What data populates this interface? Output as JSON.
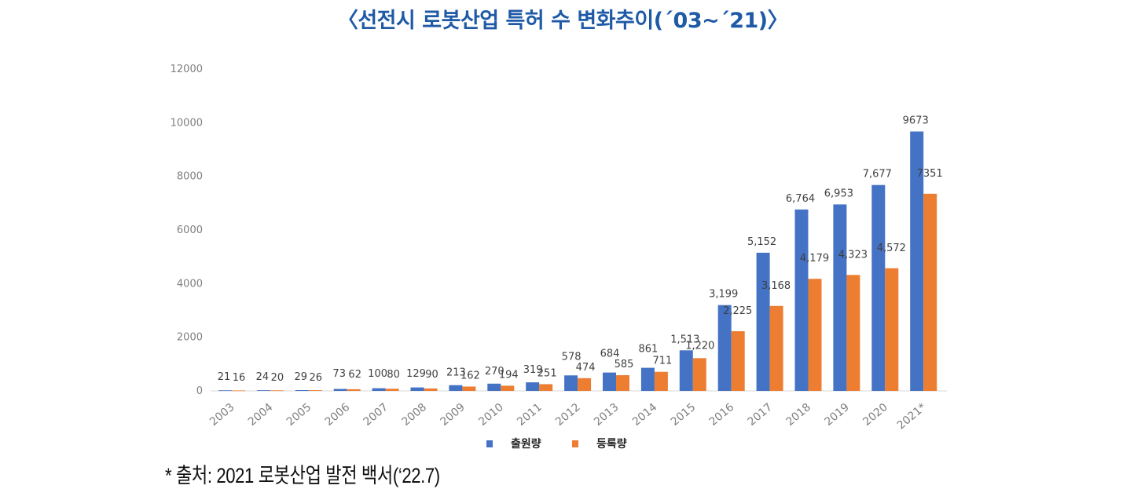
{
  "title": "〈선전시 로봇산업 특허 수 변화추이(´03~´21)〉",
  "source": "* 출처: 2021 로봇산업 발전 백서(‘22.7)",
  "chart_data": {
    "type": "bar",
    "title": "〈선전시 로봇산업 특허 수 변화추이(´03~´21)〉",
    "xlabel": "",
    "ylabel": "",
    "ylim": [
      0,
      12000
    ],
    "yticks": [
      "0",
      "2000",
      "4000",
      "6000",
      "8000",
      "10000",
      "12000"
    ],
    "grid": false,
    "legend": "bottom",
    "categories": [
      "2003",
      "2004",
      "2005",
      "2006",
      "2007",
      "2008",
      "2009",
      "2010",
      "2011",
      "2012",
      "2013",
      "2014",
      "2015",
      "2016",
      "2017",
      "2018",
      "2019",
      "2020",
      "2021*"
    ],
    "series": [
      {
        "name": "출원량",
        "color": "#4472c4",
        "values": [
          21,
          24,
          29,
          73,
          100,
          129,
          213,
          270,
          319,
          578,
          684,
          861,
          1513,
          3199,
          5152,
          6764,
          6953,
          7677,
          9673
        ],
        "labels": [
          "21",
          "24",
          "29",
          "73",
          "100",
          "129",
          "213",
          "270",
          "319",
          "578",
          "684",
          "861",
          "1,513",
          "3,199",
          "5,152",
          "6,764",
          "6,953",
          "7,677",
          "9673"
        ]
      },
      {
        "name": "등록량",
        "color": "#ed7d31",
        "values": [
          16,
          20,
          26,
          62,
          80,
          90,
          162,
          194,
          251,
          474,
          585,
          711,
          1220,
          2225,
          3168,
          4179,
          4323,
          4572,
          7351
        ],
        "labels": [
          "16",
          "20",
          "26",
          "62",
          "80",
          "90",
          "162",
          "194",
          "251",
          "474",
          "585",
          "711",
          "1,220",
          "2,225",
          "3,168",
          "4,179",
          "4,323",
          "4,572",
          "7351"
        ]
      }
    ]
  }
}
